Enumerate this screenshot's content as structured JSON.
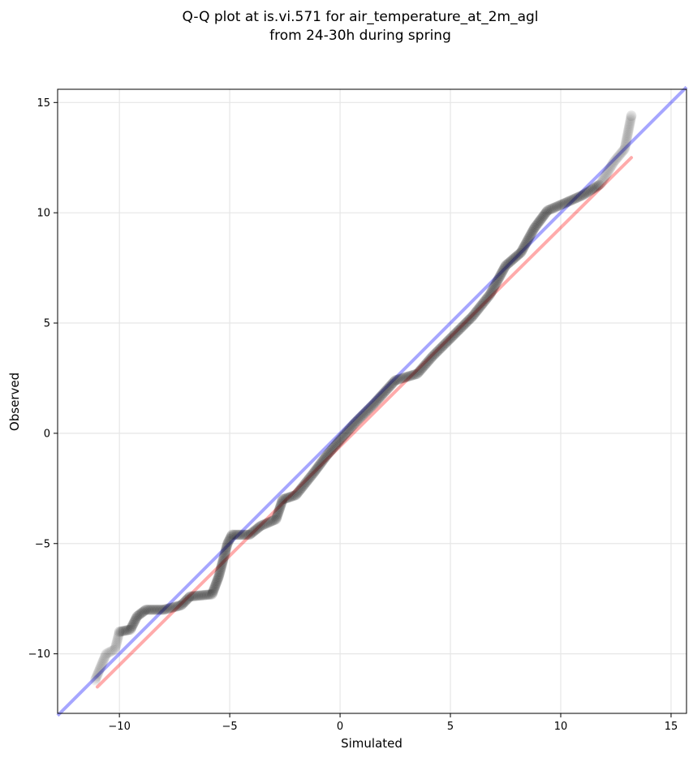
{
  "chart_data": {
    "type": "scatter",
    "title_line1": "Q-Q plot at is.vi.571 for air_temperature_at_2m_agl",
    "title_line2": "from 24-30h during spring",
    "xlabel": "Simulated",
    "ylabel": "Observed",
    "xlim": [
      -12.8,
      15.7
    ],
    "ylim": [
      -12.7,
      15.6
    ],
    "xticks": [
      -10,
      -5,
      0,
      5,
      10,
      15
    ],
    "yticks": [
      -10,
      -5,
      0,
      5,
      10,
      15
    ],
    "xtick_labels": [
      "−10",
      "−5",
      "0",
      "5",
      "10",
      "15"
    ],
    "ytick_labels": [
      "−10",
      "−5",
      "0",
      "5",
      "10",
      "15"
    ],
    "grid": true,
    "reference_line": {
      "name": "1:1",
      "color": "#0000ff",
      "from": [
        -12.8,
        -12.8
      ],
      "to": [
        15.7,
        15.7
      ]
    },
    "fit_line": {
      "color": "#ff0000",
      "from": [
        -11.0,
        -11.5
      ],
      "to": [
        13.2,
        12.5
      ]
    },
    "point_color": "#000000",
    "quantile_curve": [
      [
        -11.1,
        -11.2
      ],
      [
        -10.6,
        -10.0
      ],
      [
        -10.2,
        -9.8
      ],
      [
        -10.0,
        -9.0
      ],
      [
        -9.5,
        -8.9
      ],
      [
        -9.2,
        -8.3
      ],
      [
        -8.8,
        -8.0
      ],
      [
        -8.0,
        -8.0
      ],
      [
        -7.2,
        -7.8
      ],
      [
        -6.8,
        -7.4
      ],
      [
        -5.8,
        -7.3
      ],
      [
        -5.5,
        -6.5
      ],
      [
        -5.1,
        -5.0
      ],
      [
        -4.9,
        -4.6
      ],
      [
        -4.1,
        -4.6
      ],
      [
        -3.6,
        -4.2
      ],
      [
        -2.9,
        -3.9
      ],
      [
        -2.6,
        -3.0
      ],
      [
        -2.0,
        -2.8
      ],
      [
        -1.2,
        -1.8
      ],
      [
        -0.6,
        -1.0
      ],
      [
        0.0,
        -0.3
      ],
      [
        0.7,
        0.5
      ],
      [
        1.5,
        1.3
      ],
      [
        2.5,
        2.4
      ],
      [
        3.5,
        2.7
      ],
      [
        4.2,
        3.5
      ],
      [
        5.0,
        4.3
      ],
      [
        6.0,
        5.3
      ],
      [
        6.8,
        6.3
      ],
      [
        7.5,
        7.6
      ],
      [
        8.2,
        8.2
      ],
      [
        8.8,
        9.3
      ],
      [
        9.4,
        10.1
      ],
      [
        10.1,
        10.4
      ],
      [
        11.0,
        10.8
      ],
      [
        11.8,
        11.3
      ],
      [
        12.4,
        12.3
      ],
      [
        12.9,
        12.9
      ],
      [
        13.2,
        14.4
      ]
    ]
  }
}
